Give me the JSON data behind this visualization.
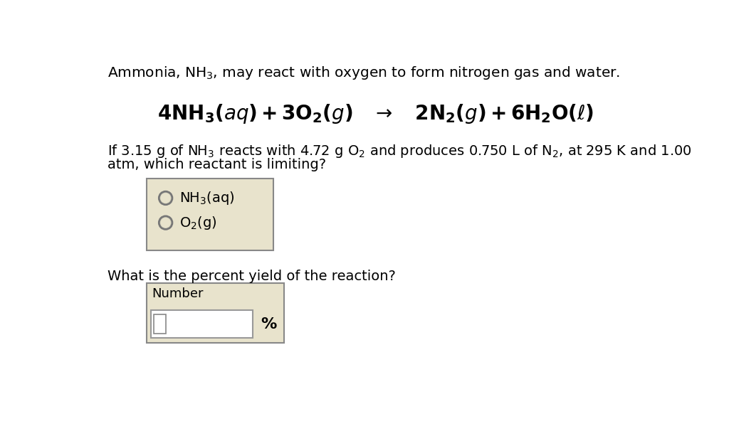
{
  "bg_color": "#ffffff",
  "title_text": "Ammonia, NH$_3$, may react with oxygen to form nitrogen gas and water.",
  "question1_line1": "If 3.15 g of NH$_3$ reacts with 4.72 g O$_2$ and produces 0.750 L of N$_2$, at 295 K and 1.00",
  "question1_line2": "atm, which reactant is limiting?",
  "radio_option1": "NH$_3$(aq)",
  "radio_option2": "O$_2$(g)",
  "question2": "What is the percent yield of the reaction?",
  "number_label": "Number",
  "percent_symbol": "%",
  "box_bg": "#e8e3cc",
  "box_border": "#888888",
  "input_bg": "#ffffff",
  "font_size_title": 14.5,
  "font_size_equation": 20,
  "font_size_question": 14,
  "font_size_options": 14,
  "font_size_number": 13,
  "font_size_percent": 14
}
